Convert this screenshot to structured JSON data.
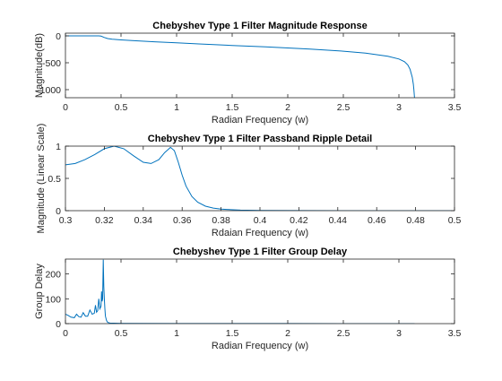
{
  "chart_data": [
    {
      "type": "line",
      "title": "Chebyshev Type 1 Filter Magnitude Response",
      "xlabel": "Radian Frequency (w)",
      "ylabel": "Magnitude(dB)",
      "xlim": [
        0,
        3.5
      ],
      "ylim": [
        -1150,
        50
      ],
      "xticks": [
        0,
        0.5,
        1,
        1.5,
        2,
        2.5,
        3,
        3.5
      ],
      "xtick_labels": [
        "0",
        "0.5",
        "1",
        "1.5",
        "2",
        "2.5",
        "3",
        "3.5"
      ],
      "yticks": [
        0,
        -500,
        -1000
      ],
      "ytick_labels": [
        "0",
        "-500",
        "-1000"
      ],
      "grid": false,
      "color": "#0072BD",
      "series": [
        {
          "x": [
            0,
            0.05,
            0.1,
            0.15,
            0.2,
            0.25,
            0.3,
            0.32,
            0.35,
            0.38,
            0.42,
            0.5,
            0.6,
            0.8,
            1.0,
            1.2,
            1.5,
            1.8,
            2.0,
            2.2,
            2.5,
            2.7,
            2.9,
            3.0,
            3.05,
            3.08,
            3.1,
            3.12,
            3.13,
            3.135,
            3.14
          ],
          "y": [
            0,
            0,
            0,
            0,
            0,
            0,
            0,
            -5,
            -30,
            -50,
            -62,
            -75,
            -88,
            -110,
            -130,
            -150,
            -178,
            -205,
            -225,
            -245,
            -285,
            -320,
            -380,
            -430,
            -480,
            -540,
            -620,
            -770,
            -900,
            -1000,
            -1150
          ]
        }
      ]
    },
    {
      "type": "line",
      "title": "Chebyshev Type 1 Filter Passband Ripple Detail",
      "xlabel": "Rdaian Frequency (w)",
      "ylabel": "Magnitude (Linear Scale)",
      "xlim": [
        0.3,
        0.5
      ],
      "ylim": [
        0,
        1
      ],
      "xticks": [
        0.3,
        0.32,
        0.34,
        0.36,
        0.38,
        0.4,
        0.42,
        0.44,
        0.46,
        0.48,
        0.5
      ],
      "xtick_labels": [
        "0.3",
        "0.32",
        "0.34",
        "0.36",
        "0.38",
        "0.4",
        "0.42",
        "0.44",
        "0.46",
        "0.48",
        "0.5"
      ],
      "yticks": [
        0,
        0.5,
        1
      ],
      "ytick_labels": [
        "0",
        "0.5",
        "1"
      ],
      "grid": false,
      "color": "#0072BD",
      "series": [
        {
          "x": [
            0.3,
            0.305,
            0.31,
            0.315,
            0.32,
            0.325,
            0.33,
            0.335,
            0.34,
            0.344,
            0.348,
            0.351,
            0.354,
            0.356,
            0.358,
            0.36,
            0.362,
            0.365,
            0.368,
            0.372,
            0.376,
            0.38,
            0.385,
            0.39,
            0.4,
            0.42,
            0.45,
            0.5
          ],
          "y": [
            0.71,
            0.73,
            0.79,
            0.87,
            0.96,
            1.0,
            0.96,
            0.85,
            0.75,
            0.73,
            0.79,
            0.9,
            0.98,
            0.93,
            0.75,
            0.55,
            0.38,
            0.22,
            0.13,
            0.07,
            0.04,
            0.025,
            0.015,
            0.008,
            0.003,
            0.001,
            0.0,
            0.0
          ]
        }
      ]
    },
    {
      "type": "line",
      "title": "Chebyshev Type 1 Filter Group Delay",
      "xlabel": "Radian Frequency (w)",
      "ylabel": "Group Delay",
      "xlim": [
        0,
        3.5
      ],
      "ylim": [
        0,
        260
      ],
      "xticks": [
        0,
        0.5,
        1,
        1.5,
        2,
        2.5,
        3,
        3.5
      ],
      "xtick_labels": [
        "0",
        "0.5",
        "1",
        "1.5",
        "2",
        "2.5",
        "3",
        "3.5"
      ],
      "yticks": [
        0,
        100,
        200
      ],
      "ytick_labels": [
        "0",
        "100",
        "200"
      ],
      "grid": false,
      "color": "#0072BD",
      "series": [
        {
          "x": [
            0,
            0.02,
            0.05,
            0.08,
            0.1,
            0.12,
            0.14,
            0.16,
            0.18,
            0.2,
            0.22,
            0.24,
            0.26,
            0.27,
            0.28,
            0.29,
            0.3,
            0.31,
            0.32,
            0.325,
            0.33,
            0.335,
            0.34,
            0.345,
            0.35,
            0.355,
            0.36,
            0.37,
            0.38,
            0.4,
            0.5,
            1.0,
            2.0,
            3.14
          ],
          "y": [
            38,
            34,
            26,
            24,
            38,
            28,
            26,
            44,
            30,
            30,
            55,
            38,
            42,
            74,
            46,
            52,
            100,
            60,
            70,
            130,
            90,
            100,
            258,
            150,
            100,
            60,
            30,
            12,
            5,
            2,
            1,
            0.5,
            0.2,
            0.1
          ]
        }
      ]
    }
  ]
}
